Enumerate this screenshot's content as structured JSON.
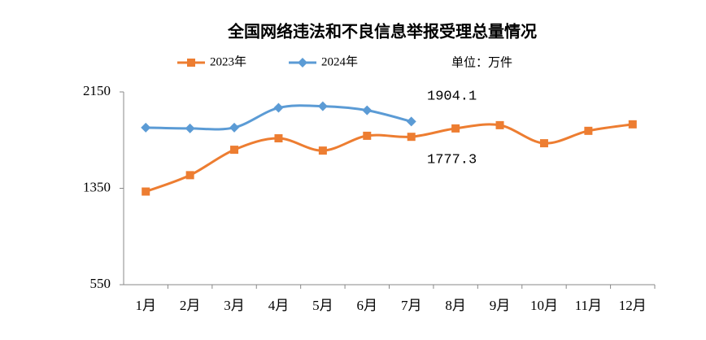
{
  "chart_data": {
    "type": "line",
    "title": "全国网络违法和不良信息举报受理总量情况",
    "unit": "单位：万件",
    "categories": [
      "1月",
      "2月",
      "3月",
      "4月",
      "5月",
      "6月",
      "7月",
      "8月",
      "9月",
      "10月",
      "11月",
      "12月"
    ],
    "series": [
      {
        "name": "2023年",
        "color": "#ed7d31",
        "marker": "square",
        "values": [
          1323,
          1459,
          1670,
          1765,
          1663,
          1786,
          1777.3,
          1847,
          1874,
          1724,
          1827,
          1881
        ]
      },
      {
        "name": "2024年",
        "color": "#5b9bd5",
        "marker": "diamond",
        "values": [
          1854,
          1847,
          1854,
          2018,
          2031,
          1997,
          1904.1,
          null,
          null,
          null,
          null,
          null
        ]
      }
    ],
    "ylim": [
      550,
      2150
    ],
    "yticks": [
      550,
      1350,
      2150
    ],
    "grid": false,
    "legend": "top"
  }
}
